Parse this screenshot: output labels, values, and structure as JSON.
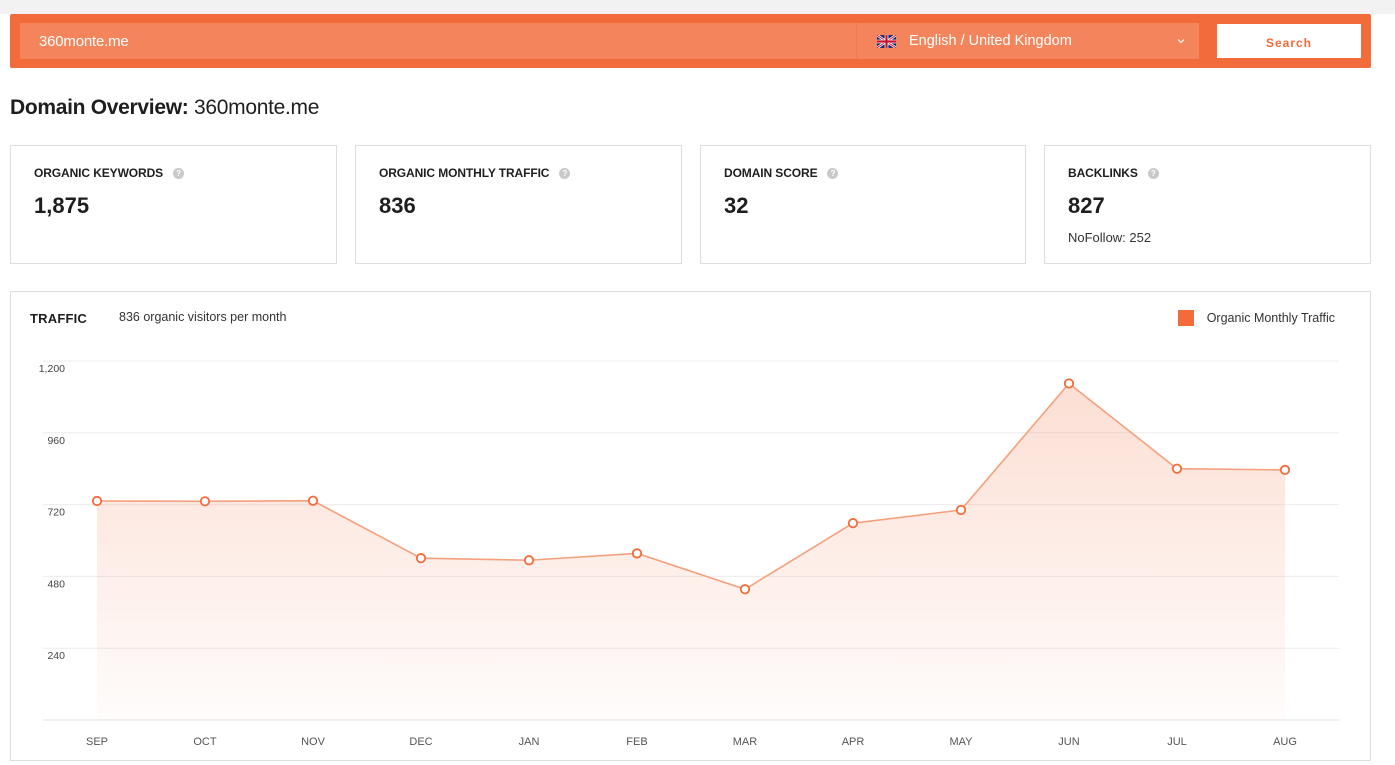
{
  "search": {
    "value": "360monte.me",
    "language_label": "English / United Kingdom",
    "button_label": "Search"
  },
  "overview": {
    "label": "Domain Overview:",
    "domain": "360monte.me"
  },
  "cards": [
    {
      "title": "ORGANIC KEYWORDS",
      "value": "1,875",
      "sub": ""
    },
    {
      "title": "ORGANIC MONTHLY TRAFFIC",
      "value": "836",
      "sub": ""
    },
    {
      "title": "DOMAIN SCORE",
      "value": "32",
      "sub": ""
    },
    {
      "title": "BACKLINKS",
      "value": "827",
      "sub": "NoFollow: 252"
    }
  ],
  "traffic": {
    "title": "TRAFFIC",
    "subtitle": "836 organic visitors per month",
    "legend_label": "Organic Monthly Traffic"
  },
  "colors": {
    "accent": "#f26b3a",
    "line": "#f4a07d"
  },
  "chart_data": {
    "type": "area",
    "categories": [
      "SEP",
      "OCT",
      "NOV",
      "DEC",
      "JAN",
      "FEB",
      "MAR",
      "APR",
      "MAY",
      "JUN",
      "JUL",
      "AUG"
    ],
    "series": [
      {
        "name": "Organic Monthly Traffic",
        "values": [
          732,
          731,
          733,
          541,
          534,
          557,
          437,
          658,
          702,
          1125,
          840,
          836
        ]
      }
    ],
    "y_ticks": [
      "1,200",
      "960",
      "720",
      "480",
      "240"
    ],
    "ylim": [
      0,
      1200
    ],
    "grid": true,
    "legend": "top-right"
  }
}
